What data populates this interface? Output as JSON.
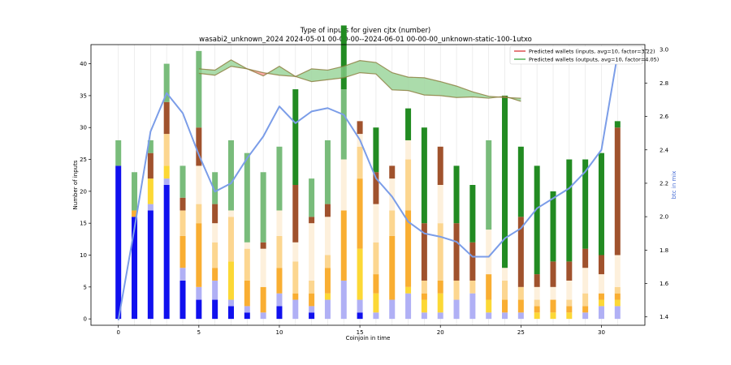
{
  "chart_data": {
    "type": "bar",
    "title": "Type of inputs for given cjtx (number)",
    "subtitle": "wasabi2_unknown_2024 2024-05-01 00-00-00--2024-06-01 00-00-00_unknown-static-100-1utxo",
    "xlabel": "Coinjoin in time",
    "ylabel": "Number of inputs",
    "y2label": "btc in mix",
    "xlim": [
      -1.7,
      32.7
    ],
    "ylim": [
      -1,
      43
    ],
    "y2lim": [
      1.35,
      3.03
    ],
    "xticks": [
      0,
      5,
      10,
      15,
      20,
      25,
      30
    ],
    "yticks": [
      0,
      5,
      10,
      15,
      20,
      25,
      30,
      35,
      40
    ],
    "y2ticks": [
      1.4,
      1.6,
      1.8,
      2.0,
      2.2,
      2.4,
      2.6,
      2.8,
      3.0
    ],
    "grid": "vertical",
    "x": [
      0,
      1,
      2,
      3,
      4,
      5,
      6,
      7,
      8,
      9,
      10,
      11,
      12,
      13,
      14,
      15,
      16,
      17,
      18,
      19,
      20,
      21,
      22,
      23,
      24,
      25,
      26,
      27,
      28,
      29,
      30,
      31
    ],
    "stack_colors": [
      "#1010ee",
      "#b0b0f5",
      "#fcd835",
      "#f9ae32",
      "#fcd690",
      "#fdf0dc",
      "#a0522d",
      "#79bc7b",
      "#228b22"
    ],
    "stacks": [
      [
        24,
        0,
        0,
        0,
        0,
        0,
        0,
        4,
        0
      ],
      [
        16,
        0,
        0,
        1,
        0,
        0,
        0,
        6,
        0
      ],
      [
        17,
        1,
        4,
        0,
        0,
        0,
        4,
        2,
        0
      ],
      [
        21,
        1,
        2,
        0,
        5,
        0,
        5,
        6,
        0
      ],
      [
        6,
        2,
        0,
        5,
        4,
        0,
        2,
        5,
        0
      ],
      [
        3,
        2,
        0,
        10,
        3,
        6,
        6,
        12,
        0
      ],
      [
        3,
        3,
        0,
        2,
        4,
        3,
        3,
        5,
        0
      ],
      [
        2,
        1,
        6,
        0,
        7,
        1,
        0,
        11,
        0
      ],
      [
        1,
        1,
        0,
        4,
        5,
        1,
        0,
        14,
        0
      ],
      [
        0,
        1,
        0,
        4,
        0,
        6,
        1,
        11,
        0
      ],
      [
        2,
        2,
        0,
        4,
        5,
        4,
        0,
        10,
        0
      ],
      [
        0,
        3,
        0,
        1,
        5,
        3,
        9,
        0,
        15
      ],
      [
        1,
        1,
        0,
        2,
        2,
        9,
        1,
        6,
        0
      ],
      [
        0,
        3,
        1,
        4,
        2,
        6,
        2,
        10,
        0
      ],
      [
        0,
        6,
        0,
        11,
        0,
        8,
        0,
        11,
        10
      ],
      [
        1,
        2,
        8,
        11,
        5,
        2,
        2,
        0,
        0
      ],
      [
        0,
        1,
        3,
        3,
        5,
        6,
        5,
        0,
        7
      ],
      [
        0,
        3,
        0,
        10,
        4,
        5,
        2,
        0,
        0
      ],
      [
        0,
        4,
        1,
        12,
        8,
        3,
        0,
        0,
        5
      ],
      [
        0,
        1,
        2,
        1,
        2,
        0,
        9,
        0,
        15
      ],
      [
        0,
        1,
        3,
        2,
        9,
        6,
        6,
        0,
        0
      ],
      [
        0,
        3,
        0,
        0,
        3,
        0,
        9,
        0,
        9
      ],
      [
        0,
        4,
        0,
        0,
        2,
        0,
        6,
        0,
        9
      ],
      [
        0,
        1,
        2,
        4,
        0,
        7,
        0,
        14,
        0
      ],
      [
        0,
        1,
        0,
        2,
        3,
        2,
        0,
        0,
        27
      ],
      [
        0,
        1,
        0,
        2,
        2,
        0,
        11,
        0,
        11
      ],
      [
        0,
        0,
        1,
        1,
        1,
        2,
        2,
        0,
        17
      ],
      [
        0,
        0,
        1,
        2,
        0,
        2,
        4,
        0,
        11
      ],
      [
        0,
        0,
        1,
        1,
        1,
        3,
        3,
        0,
        16
      ],
      [
        0,
        1,
        0,
        1,
        2,
        4,
        3,
        0,
        14
      ],
      [
        0,
        2,
        1,
        1,
        0,
        3,
        3,
        0,
        16
      ],
      [
        0,
        2,
        1,
        1,
        1,
        5,
        20,
        0,
        1
      ]
    ],
    "series": [
      {
        "name": "Predicted wallets (inputs, avg=10, factor=3.22)",
        "color": "#d62728",
        "x": [
          5,
          6,
          7,
          8,
          9,
          10,
          11,
          12,
          13,
          14,
          15,
          16,
          17,
          18,
          19,
          20,
          21,
          22,
          23,
          24,
          25
        ],
        "values": [
          38.5,
          38.2,
          39.6,
          39.2,
          38.6,
          38.2,
          38.0,
          37.2,
          37.5,
          37.8,
          38.6,
          38.4,
          35.9,
          35.8,
          35.1,
          35.0,
          34.7,
          34.8,
          34.6,
          34.9,
          34.1
        ]
      },
      {
        "name": "Predicted wallets (outputs, avg=10, factor=4.05)",
        "color": "#2ca02c",
        "x": [
          5,
          6,
          7,
          8,
          9,
          10,
          11,
          12,
          13,
          14,
          15,
          16,
          17,
          18,
          19,
          20,
          21,
          22,
          23,
          24,
          25
        ],
        "values": [
          39.2,
          39.0,
          40.6,
          39.2,
          38.1,
          39.6,
          38.0,
          39.2,
          39.0,
          39.6,
          40.5,
          40.2,
          38.6,
          37.9,
          37.8,
          37.2,
          36.5,
          35.6,
          34.9,
          34.7,
          34.6
        ]
      },
      {
        "name": "btc in mix",
        "color": "#7b9de8",
        "axis": "right",
        "x": [
          0,
          1,
          2,
          3,
          4,
          5,
          6,
          7,
          8,
          9,
          10,
          11,
          12,
          13,
          14,
          15,
          16,
          17,
          18,
          19,
          20,
          21,
          22,
          23,
          24,
          25,
          26,
          27,
          28,
          29,
          30,
          31
        ],
        "values": [
          1.38,
          1.93,
          2.51,
          2.74,
          2.62,
          2.37,
          2.15,
          2.2,
          2.35,
          2.48,
          2.66,
          2.56,
          2.63,
          2.65,
          2.61,
          2.46,
          2.23,
          2.12,
          1.97,
          1.9,
          1.88,
          1.85,
          1.76,
          1.76,
          1.87,
          1.93,
          2.05,
          2.11,
          2.17,
          2.27,
          2.4,
          2.97
        ]
      }
    ],
    "legend": "top-right"
  }
}
